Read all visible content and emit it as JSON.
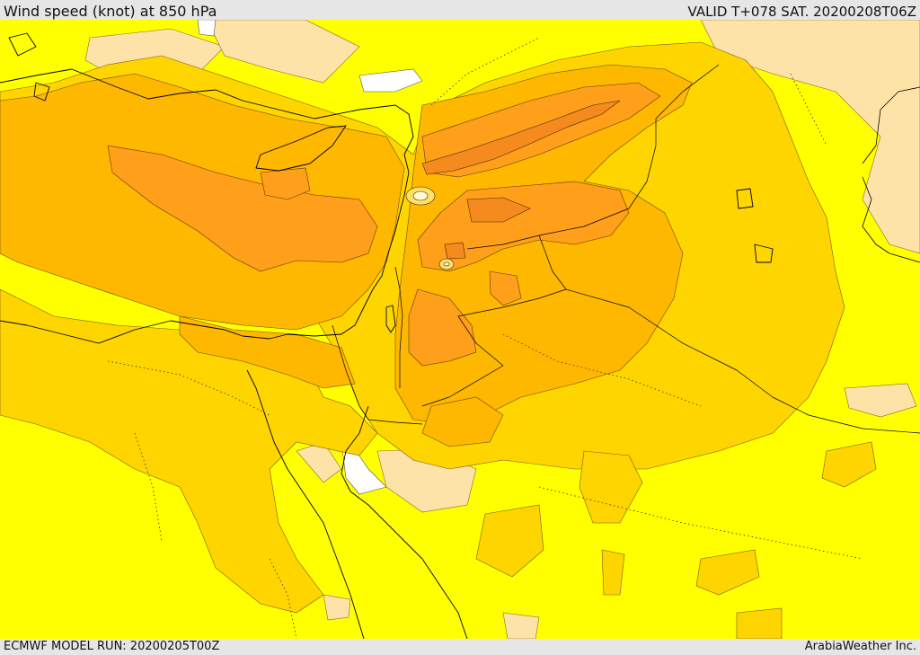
{
  "header": {
    "title": "Wind speed (knot) at 850 hPa",
    "valid": "VALID T+078 SAT. 20200208T06Z"
  },
  "footer": {
    "model_run": "ECMWF MODEL RUN: 20200205T00Z",
    "credit": "ArabiaWeather Inc."
  },
  "colors": {
    "calm_white": "#ffffff",
    "light_peach": "#fde3a8",
    "yellow": "#ffff00",
    "gold": "#ffd500",
    "amber": "#ffb800",
    "orange": "#ff9f1a",
    "deep_orange": "#f58a1f",
    "coastline": "#000000"
  }
}
